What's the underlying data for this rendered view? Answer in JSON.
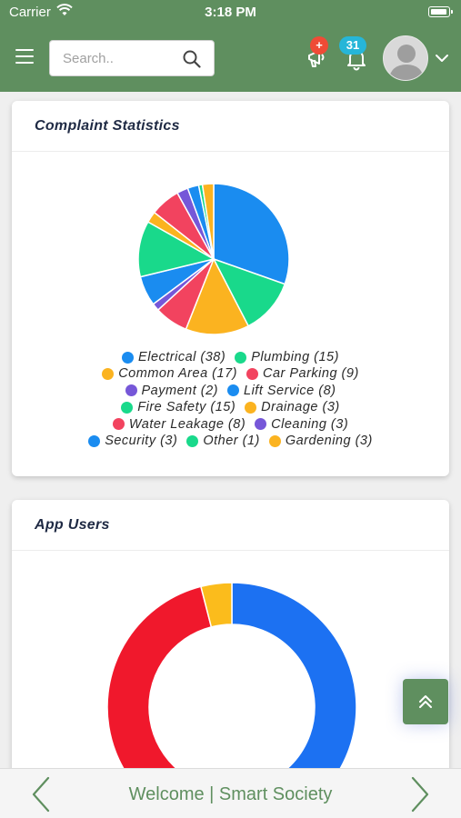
{
  "status_bar": {
    "carrier": "Carrier",
    "time": "3:18 PM"
  },
  "header": {
    "search_placeholder": "Search..",
    "announcement_badge": "+",
    "notification_count": "31"
  },
  "complaint_card": {
    "title": "Complaint Statistics"
  },
  "app_users_card": {
    "title": "App Users"
  },
  "footer": {
    "welcome_text": "Welcome | Smart Society"
  },
  "colors": {
    "header_green": "#5f8f5f",
    "blue": "#1a8cf0",
    "green": "#19d98b",
    "orange": "#fbb320",
    "red": "#f2435f",
    "purple": "#7657d8",
    "donut_blue": "#1c71f2",
    "donut_red": "#f0182c",
    "donut_yellow": "#fbbc1c"
  },
  "chart_data": [
    {
      "type": "pie",
      "title": "Complaint Statistics",
      "categories": [
        "Electrical",
        "Plumbing",
        "Common Area",
        "Car Parking",
        "Payment",
        "Lift Service",
        "Fire Safety",
        "Drainage",
        "Water Leakage",
        "Cleaning",
        "Security",
        "Other",
        "Gardening"
      ],
      "values": [
        38,
        15,
        17,
        9,
        2,
        8,
        15,
        3,
        8,
        3,
        3,
        1,
        3
      ],
      "colors": [
        "#1a8cf0",
        "#19d98b",
        "#fbb320",
        "#f2435f",
        "#7657d8",
        "#1a8cf0",
        "#19d98b",
        "#fbb320",
        "#f2435f",
        "#7657d8",
        "#1a8cf0",
        "#19d98b",
        "#fbb320"
      ],
      "legend_labels": [
        "Electrical (38)",
        "Plumbing (15)",
        "Common Area (17)",
        "Car Parking (9)",
        "Payment (2)",
        "Lift Service (8)",
        "Fire Safety (15)",
        "Drainage (3)",
        "Water Leakage (8)",
        "Cleaning (3)",
        "Security (3)",
        "Other (1)",
        "Gardening (3)"
      ],
      "legend_placement": "bottom"
    },
    {
      "type": "pie",
      "title": "App Users",
      "values": [
        49,
        47,
        4
      ],
      "colors": [
        "#1c71f2",
        "#f0182c",
        "#fbbc1c"
      ]
    }
  ]
}
